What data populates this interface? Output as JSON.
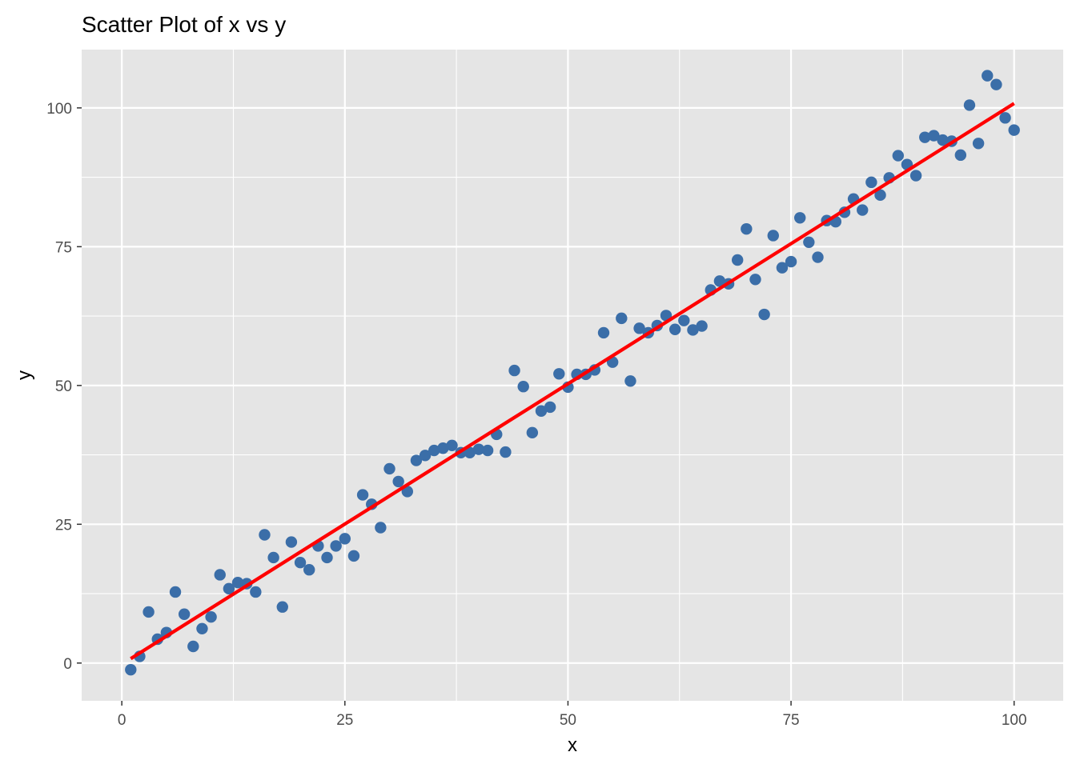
{
  "chart_data": {
    "type": "scatter",
    "title": "Scatter Plot of x vs y",
    "xlabel": "x",
    "ylabel": "y",
    "xlim": [
      -4.5,
      105.5
    ],
    "ylim": [
      -6.8,
      110.5
    ],
    "x_ticks": [
      0,
      25,
      50,
      75,
      100
    ],
    "y_ticks": [
      0,
      25,
      50,
      75,
      100
    ],
    "x_tick_labels": [
      "0",
      "25",
      "50",
      "75",
      "100"
    ],
    "y_tick_labels": [
      "0",
      "25",
      "50",
      "75",
      "100"
    ],
    "grid": true,
    "legend": "none",
    "colors": {
      "panel_background": "#e5e5e5",
      "grid_line": "#ffffff",
      "point": "#3b6ea8",
      "fit_line": "#ff0000",
      "tick_text": "#4d4d4d",
      "axis_title": "#000000"
    },
    "series": [
      {
        "type": "scatter",
        "x": [
          1,
          2,
          3,
          4,
          5,
          6,
          7,
          8,
          9,
          10,
          11,
          12,
          13,
          14,
          15,
          16,
          17,
          18,
          19,
          20,
          21,
          22,
          23,
          24,
          25,
          26,
          27,
          28,
          29,
          30,
          31,
          32,
          33,
          34,
          35,
          36,
          37,
          38,
          39,
          40,
          41,
          42,
          43,
          44,
          45,
          46,
          47,
          48,
          49,
          50,
          51,
          52,
          53,
          54,
          55,
          56,
          57,
          58,
          59,
          60,
          61,
          62,
          63,
          64,
          65,
          66,
          67,
          68,
          69,
          70,
          71,
          72,
          73,
          74,
          75,
          76,
          77,
          78,
          79,
          80,
          81,
          82,
          83,
          84,
          85,
          86,
          87,
          88,
          89,
          90,
          91,
          92,
          93,
          94,
          95,
          96,
          97,
          98,
          99,
          100
        ],
        "y": [
          -1.2,
          1.2,
          9.2,
          4.3,
          5.5,
          12.8,
          8.8,
          3.0,
          6.2,
          8.3,
          15.9,
          13.4,
          14.5,
          14.3,
          12.8,
          23.1,
          19.0,
          10.1,
          21.8,
          18.1,
          16.8,
          21.1,
          19.0,
          21.1,
          22.4,
          19.3,
          30.3,
          28.6,
          24.4,
          35.0,
          32.7,
          30.9,
          36.5,
          37.4,
          38.3,
          38.7,
          39.2,
          37.9,
          37.9,
          38.5,
          38.3,
          41.2,
          38.0,
          52.7,
          49.8,
          41.5,
          45.4,
          46.1,
          52.1,
          49.7,
          52.0,
          52.0,
          52.8,
          59.5,
          54.2,
          62.1,
          50.8,
          60.3,
          59.5,
          60.8,
          62.6,
          60.1,
          61.7,
          60.0,
          60.7,
          67.2,
          68.8,
          68.3,
          72.6,
          78.2,
          69.1,
          62.8,
          77.0,
          71.2,
          72.3,
          80.2,
          75.8,
          73.1,
          79.7,
          79.5,
          81.2,
          83.6,
          81.6,
          86.6,
          84.3,
          87.4,
          91.4,
          89.8,
          87.8,
          94.7,
          95.0,
          94.2,
          94.0,
          91.5,
          100.5,
          93.6,
          105.8,
          104.2,
          98.2,
          96.0
        ]
      },
      {
        "type": "line",
        "name": "fit",
        "x": [
          1,
          100
        ],
        "y": [
          0.8,
          100.8
        ]
      }
    ]
  }
}
